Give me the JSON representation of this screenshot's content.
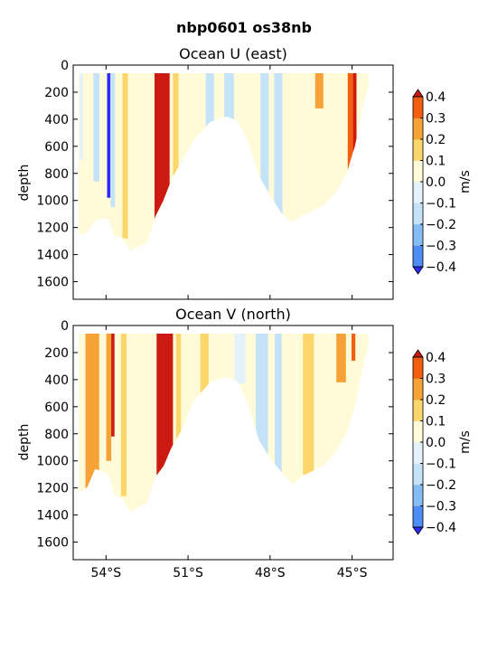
{
  "figure": {
    "title": "nbp0601 os38nb"
  },
  "palette": {
    "levels": [
      -0.4,
      -0.3,
      -0.2,
      -0.1,
      0.0,
      0.1,
      0.2,
      0.3,
      0.4
    ],
    "colors": [
      "#2b2bff",
      "#4d8df5",
      "#86bcf4",
      "#c4e2f8",
      "#e3f2fb",
      "#fffad7",
      "#fbd66a",
      "#f6a236",
      "#f35f10",
      "#cc1a12"
    ]
  },
  "chart_data": [
    {
      "type": "heatmap",
      "title": "Ocean U (east)",
      "ylabel": "depth",
      "xlabel": "",
      "yaxis": {
        "inverted": true,
        "ylim": [
          0,
          1730
        ],
        "ticks": [
          0,
          200,
          400,
          600,
          800,
          1000,
          1200,
          1400,
          1600
        ]
      },
      "xaxis": {
        "xlim": [
          -55.2,
          -43.5
        ],
        "ticks": [
          -54,
          -51,
          -48,
          -45
        ],
        "tick_labels": []
      },
      "colorbar": {
        "label": "m/s",
        "ticks": [
          -0.4,
          -0.3,
          -0.2,
          -0.1,
          0.0,
          0.1,
          0.2,
          0.3,
          0.4
        ],
        "tick_labels": [
          "−0.4",
          "−0.3",
          "−0.2",
          "−0.1",
          "0.0",
          "0.1",
          "0.2",
          "0.3",
          "0.4"
        ],
        "extend": "both"
      },
      "data_window": {
        "lon": [
          -55.0,
          -44.4
        ],
        "depth_top": 60
      },
      "bottom_profile": [
        [
          -55.0,
          1250
        ],
        [
          -54.7,
          1240
        ],
        [
          -54.4,
          1150
        ],
        [
          -54.1,
          1130
        ],
        [
          -53.9,
          1140
        ],
        [
          -53.7,
          1260
        ],
        [
          -53.4,
          1280
        ],
        [
          -53.1,
          1370
        ],
        [
          -52.8,
          1340
        ],
        [
          -52.5,
          1310
        ],
        [
          -52.2,
          1120
        ],
        [
          -51.9,
          1000
        ],
        [
          -51.6,
          840
        ],
        [
          -51.2,
          700
        ],
        [
          -50.8,
          560
        ],
        [
          -50.2,
          420
        ],
        [
          -49.6,
          380
        ],
        [
          -49.2,
          410
        ],
        [
          -48.8,
          560
        ],
        [
          -48.4,
          820
        ],
        [
          -48.0,
          960
        ],
        [
          -47.6,
          1090
        ],
        [
          -47.2,
          1160
        ],
        [
          -46.8,
          1110
        ],
        [
          -46.4,
          1070
        ],
        [
          -46.0,
          1030
        ],
        [
          -45.6,
          940
        ],
        [
          -45.2,
          800
        ],
        [
          -44.9,
          600
        ],
        [
          -44.6,
          300
        ],
        [
          -44.4,
          150
        ]
      ],
      "background": 0.03,
      "features": [
        {
          "lon": -53.9,
          "width": 0.12,
          "top": 60,
          "bottom": 980,
          "value": -0.42
        },
        {
          "lon": -53.75,
          "width": 0.16,
          "top": 60,
          "bottom": 1050,
          "value": -0.18
        },
        {
          "lon": -54.35,
          "width": 0.22,
          "top": 60,
          "bottom": 860,
          "value": -0.12
        },
        {
          "lon": -54.9,
          "width": 0.12,
          "top": 60,
          "bottom": 700,
          "value": -0.08
        },
        {
          "lon": -53.3,
          "width": 0.2,
          "top": 60,
          "bottom": 1280,
          "value": 0.13
        },
        {
          "lon": -51.95,
          "width": 0.55,
          "top": 60,
          "bottom": 1300,
          "value": 0.5
        },
        {
          "lon": -51.45,
          "width": 0.2,
          "top": 60,
          "bottom": 1100,
          "value": 0.16
        },
        {
          "lon": -50.2,
          "width": 0.3,
          "top": 60,
          "bottom": 700,
          "value": -0.14
        },
        {
          "lon": -49.5,
          "width": 0.35,
          "top": 60,
          "bottom": 420,
          "value": -0.11
        },
        {
          "lon": -48.2,
          "width": 0.3,
          "top": 60,
          "bottom": 980,
          "value": -0.16
        },
        {
          "lon": -47.7,
          "width": 0.3,
          "top": 60,
          "bottom": 1120,
          "value": -0.12
        },
        {
          "lon": -47.0,
          "width": 0.25,
          "top": 60,
          "bottom": 1180,
          "value": 0.09
        },
        {
          "lon": -46.2,
          "width": 0.3,
          "top": 60,
          "bottom": 320,
          "value": 0.22
        },
        {
          "lon": -45.0,
          "width": 0.32,
          "top": 60,
          "bottom": 920,
          "value": 0.3
        },
        {
          "lon": -44.9,
          "width": 0.12,
          "top": 60,
          "bottom": 640,
          "value": 0.42
        }
      ]
    },
    {
      "type": "heatmap",
      "title": "Ocean V (north)",
      "ylabel": "depth",
      "xlabel": "",
      "yaxis": {
        "inverted": true,
        "ylim": [
          0,
          1730
        ],
        "ticks": [
          0,
          200,
          400,
          600,
          800,
          1000,
          1200,
          1400,
          1600
        ]
      },
      "xaxis": {
        "xlim": [
          -55.2,
          -43.5
        ],
        "ticks": [
          -54,
          -51,
          -48,
          -45
        ],
        "tick_labels": [
          "54°S",
          "51°S",
          "48°S",
          "45°S"
        ]
      },
      "colorbar": {
        "label": "m/s",
        "ticks": [
          -0.4,
          -0.3,
          -0.2,
          -0.1,
          0.0,
          0.1,
          0.2,
          0.3,
          0.4
        ],
        "tick_labels": [
          "−0.4",
          "−0.3",
          "−0.2",
          "−0.1",
          "0.0",
          "0.1",
          "0.2",
          "0.3",
          "0.4"
        ],
        "extend": "both"
      },
      "data_window": {
        "lon": [
          -55.0,
          -44.4
        ],
        "depth_top": 60
      },
      "bottom_profile": [
        [
          -55.0,
          1230
        ],
        [
          -54.7,
          1200
        ],
        [
          -54.4,
          1060
        ],
        [
          -54.1,
          1080
        ],
        [
          -53.9,
          1100
        ],
        [
          -53.7,
          1250
        ],
        [
          -53.4,
          1280
        ],
        [
          -53.1,
          1380
        ],
        [
          -52.8,
          1340
        ],
        [
          -52.5,
          1310
        ],
        [
          -52.2,
          1120
        ],
        [
          -51.9,
          1040
        ],
        [
          -51.6,
          900
        ],
        [
          -51.2,
          760
        ],
        [
          -50.8,
          560
        ],
        [
          -50.2,
          420
        ],
        [
          -49.6,
          380
        ],
        [
          -49.2,
          410
        ],
        [
          -48.8,
          580
        ],
        [
          -48.4,
          850
        ],
        [
          -48.0,
          980
        ],
        [
          -47.6,
          1080
        ],
        [
          -47.2,
          1170
        ],
        [
          -46.8,
          1110
        ],
        [
          -46.4,
          1070
        ],
        [
          -46.0,
          1030
        ],
        [
          -45.6,
          930
        ],
        [
          -45.2,
          790
        ],
        [
          -44.9,
          600
        ],
        [
          -44.6,
          300
        ],
        [
          -44.4,
          150
        ]
      ],
      "background": 0.07,
      "features": [
        {
          "lon": -54.5,
          "width": 0.5,
          "top": 60,
          "bottom": 1200,
          "value": 0.26
        },
        {
          "lon": -53.9,
          "width": 0.18,
          "top": 60,
          "bottom": 1000,
          "value": 0.28
        },
        {
          "lon": -53.75,
          "width": 0.12,
          "top": 60,
          "bottom": 820,
          "value": 0.5
        },
        {
          "lon": -53.35,
          "width": 0.2,
          "top": 60,
          "bottom": 1260,
          "value": 0.16
        },
        {
          "lon": -51.85,
          "width": 0.6,
          "top": 60,
          "bottom": 1310,
          "value": 0.5
        },
        {
          "lon": -51.35,
          "width": 0.18,
          "top": 60,
          "bottom": 1040,
          "value": 0.18
        },
        {
          "lon": -50.4,
          "width": 0.3,
          "top": 60,
          "bottom": 560,
          "value": 0.16
        },
        {
          "lon": -49.1,
          "width": 0.4,
          "top": 60,
          "bottom": 430,
          "value": -0.08
        },
        {
          "lon": -48.3,
          "width": 0.45,
          "top": 60,
          "bottom": 960,
          "value": -0.12
        },
        {
          "lon": -47.7,
          "width": 0.25,
          "top": 60,
          "bottom": 1100,
          "value": -0.14
        },
        {
          "lon": -46.6,
          "width": 0.4,
          "top": 60,
          "bottom": 1100,
          "value": 0.14
        },
        {
          "lon": -45.4,
          "width": 0.35,
          "top": 60,
          "bottom": 420,
          "value": 0.24
        },
        {
          "lon": -44.95,
          "width": 0.14,
          "top": 60,
          "bottom": 260,
          "value": 0.35
        }
      ]
    }
  ]
}
